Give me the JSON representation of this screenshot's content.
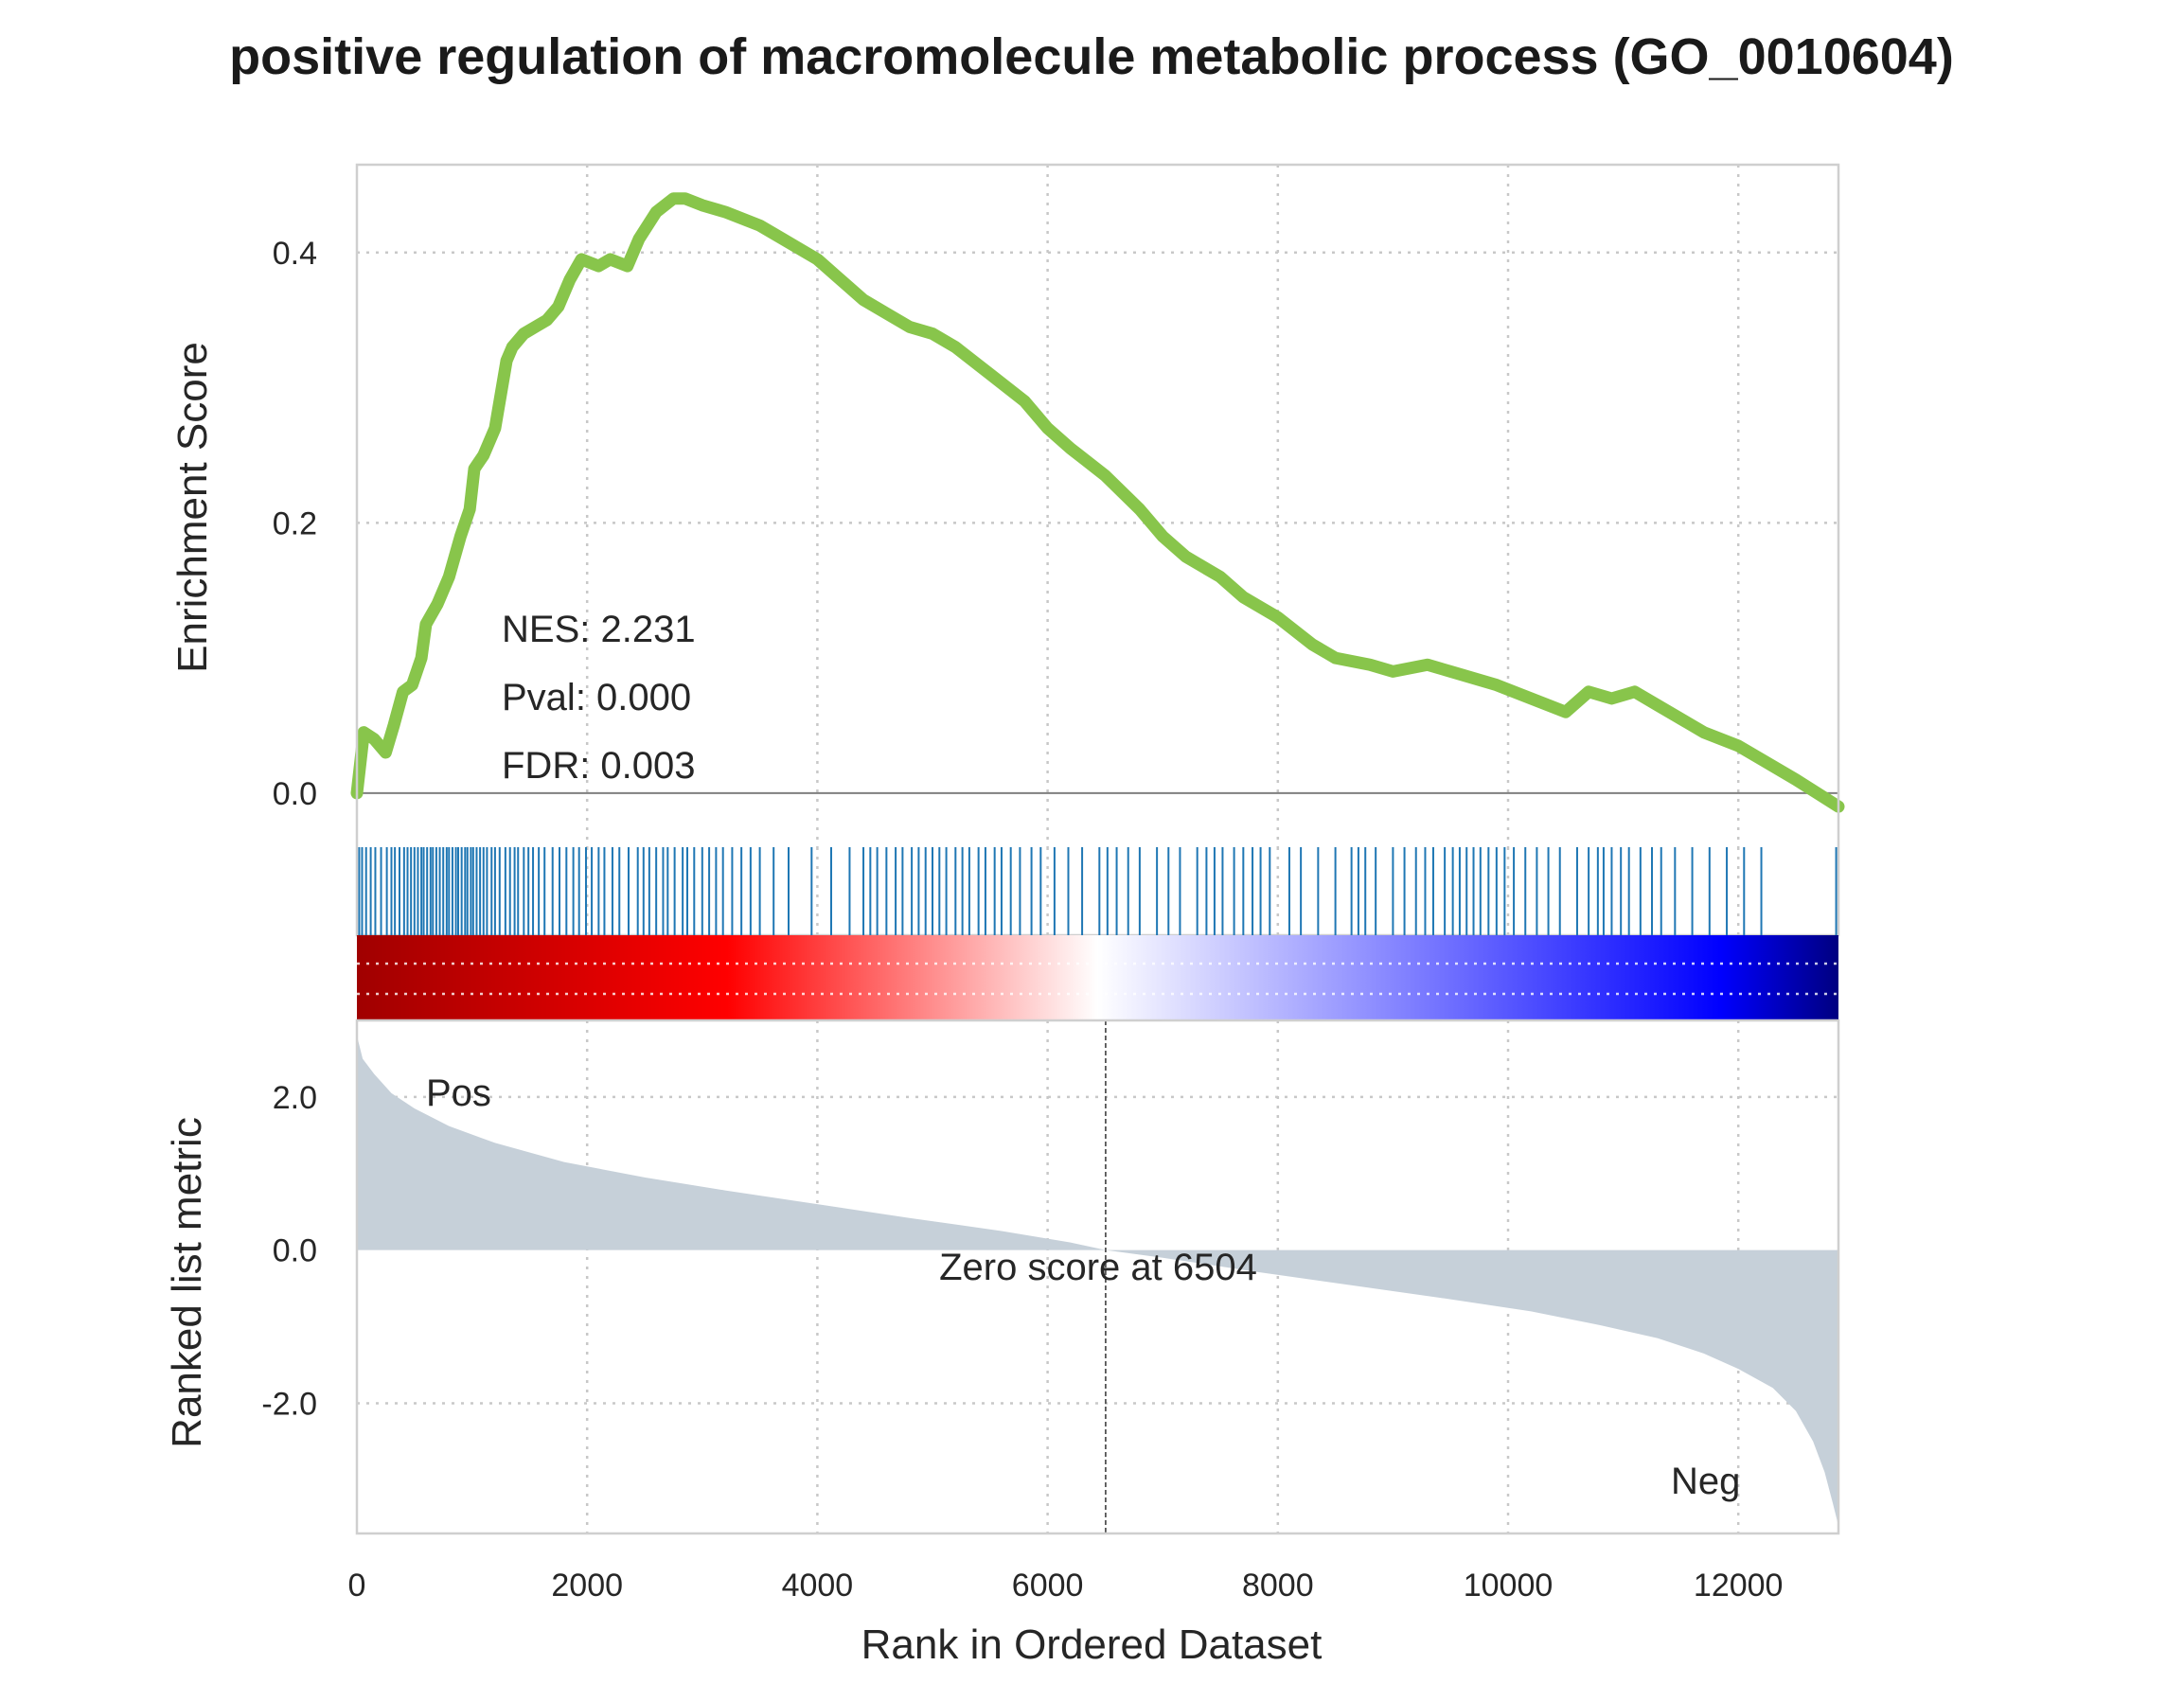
{
  "chart_data": {
    "type": "line",
    "title": "positive regulation of macromolecule metabolic process (GO_0010604)",
    "xlabel": "Rank in Ordered Dataset",
    "xlim": [
      0,
      12870
    ],
    "xticks": [
      "0",
      "2000",
      "4000",
      "6000",
      "8000",
      "10000",
      "12000"
    ],
    "xtick_values": [
      0,
      2000,
      4000,
      6000,
      8000,
      10000,
      12000
    ],
    "grid": true,
    "enrichment": {
      "ylabel": "Enrichment Score",
      "ylim": [
        -0.04,
        0.465
      ],
      "yticks": [
        "0.0",
        "0.2",
        "0.4"
      ],
      "ytick_values": [
        0.0,
        0.2,
        0.4
      ],
      "line_color": "#88c54b",
      "x": [
        0,
        60,
        150,
        250,
        320,
        400,
        480,
        560,
        600,
        700,
        800,
        900,
        980,
        1020,
        1100,
        1200,
        1300,
        1350,
        1450,
        1550,
        1650,
        1750,
        1850,
        1950,
        2100,
        2200,
        2350,
        2450,
        2600,
        2750,
        2850,
        3000,
        3200,
        3500,
        3700,
        4000,
        4200,
        4400,
        4600,
        4800,
        5000,
        5200,
        5500,
        5800,
        6000,
        6200,
        6500,
        6800,
        7000,
        7200,
        7500,
        7700,
        8000,
        8300,
        8500,
        8800,
        9000,
        9300,
        9500,
        9700,
        9900,
        10200,
        10500,
        10700,
        10900,
        11100,
        11300,
        11500,
        11700,
        12000,
        12200,
        12500,
        12870
      ],
      "values": [
        0.0,
        0.045,
        0.04,
        0.03,
        0.05,
        0.075,
        0.08,
        0.1,
        0.125,
        0.14,
        0.16,
        0.19,
        0.21,
        0.24,
        0.25,
        0.27,
        0.32,
        0.33,
        0.34,
        0.345,
        0.35,
        0.36,
        0.38,
        0.395,
        0.39,
        0.395,
        0.39,
        0.41,
        0.43,
        0.44,
        0.44,
        0.435,
        0.43,
        0.42,
        0.41,
        0.395,
        0.38,
        0.365,
        0.355,
        0.345,
        0.34,
        0.33,
        0.31,
        0.29,
        0.27,
        0.255,
        0.235,
        0.21,
        0.19,
        0.175,
        0.16,
        0.145,
        0.13,
        0.11,
        0.1,
        0.095,
        0.09,
        0.095,
        0.09,
        0.085,
        0.08,
        0.07,
        0.06,
        0.075,
        0.07,
        0.075,
        0.065,
        0.055,
        0.045,
        0.035,
        0.025,
        0.01,
        -0.01
      ]
    },
    "hits": {
      "color": "#1f77b4",
      "x": [
        20,
        45,
        80,
        120,
        160,
        210,
        260,
        300,
        330,
        370,
        410,
        440,
        470,
        500,
        530,
        560,
        580,
        610,
        640,
        660,
        690,
        720,
        750,
        780,
        800,
        830,
        860,
        880,
        910,
        940,
        960,
        990,
        1010,
        1040,
        1070,
        1100,
        1130,
        1170,
        1200,
        1240,
        1290,
        1330,
        1370,
        1400,
        1450,
        1490,
        1530,
        1580,
        1630,
        1700,
        1760,
        1820,
        1880,
        1930,
        1990,
        2040,
        2100,
        2150,
        2220,
        2280,
        2360,
        2440,
        2490,
        2540,
        2600,
        2660,
        2700,
        2760,
        2830,
        2870,
        2930,
        3000,
        3060,
        3120,
        3180,
        3260,
        3340,
        3420,
        3500,
        3620,
        3750,
        3950,
        4120,
        4280,
        4400,
        4460,
        4520,
        4600,
        4680,
        4740,
        4820,
        4880,
        4940,
        5000,
        5060,
        5120,
        5200,
        5260,
        5320,
        5400,
        5460,
        5540,
        5600,
        5680,
        5760,
        5860,
        5940,
        6060,
        6180,
        6300,
        6450,
        6520,
        6600,
        6700,
        6800,
        6950,
        7050,
        7150,
        7300,
        7380,
        7450,
        7520,
        7620,
        7700,
        7780,
        7850,
        7930,
        8100,
        8200,
        8350,
        8500,
        8640,
        8700,
        8760,
        8850,
        9000,
        9100,
        9200,
        9280,
        9350,
        9450,
        9520,
        9580,
        9640,
        9700,
        9760,
        9830,
        9900,
        9970,
        10050,
        10150,
        10250,
        10350,
        10450,
        10600,
        10700,
        10780,
        10830,
        10900,
        10980,
        11050,
        11150,
        11250,
        11330,
        11450,
        11600,
        11750,
        11900,
        12050,
        12200,
        12850
      ]
    },
    "colorbar": {
      "stops": [
        "#a00000",
        "#ff0000",
        "#ffffff",
        "#0000ff",
        "#000080"
      ]
    },
    "ranked": {
      "ylabel": "Ranked list metric",
      "ylim": [
        -3.7,
        3.0
      ],
      "yticks": [
        "2.0",
        "0.0",
        "-2.0"
      ],
      "ytick_values": [
        2.0,
        0.0,
        -2.0
      ],
      "fill_color": "#c6d0d9",
      "x": [
        0,
        50,
        150,
        300,
        500,
        800,
        1200,
        1800,
        2500,
        3200,
        4000,
        4800,
        5600,
        6200,
        6504,
        7000,
        7800,
        8600,
        9400,
        10200,
        10800,
        11300,
        11700,
        12000,
        12300,
        12500,
        12650,
        12750,
        12820,
        12870
      ],
      "values": [
        2.8,
        2.5,
        2.3,
        2.05,
        1.85,
        1.62,
        1.4,
        1.15,
        0.95,
        0.78,
        0.6,
        0.42,
        0.25,
        0.1,
        0.0,
        -0.1,
        -0.28,
        -0.45,
        -0.62,
        -0.8,
        -0.98,
        -1.15,
        -1.35,
        -1.55,
        -1.8,
        -2.1,
        -2.5,
        -2.9,
        -3.3,
        -3.6
      ]
    },
    "zero_cross": 6504,
    "annotations": {
      "nes": "NES: 2.231",
      "pval": "Pval: 0.000",
      "fdr": "FDR: 0.003",
      "zero_score": "Zero score at 6504",
      "pos_label": "Pos",
      "neg_label": "Neg",
      "pos_color": "#ff0000",
      "neg_color": "#0000ff"
    }
  }
}
